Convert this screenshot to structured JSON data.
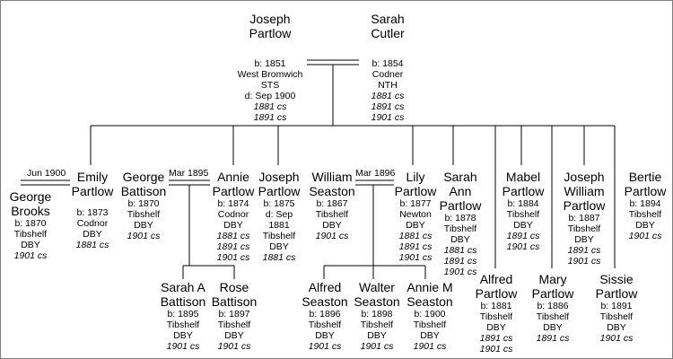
{
  "marriages": {
    "brooks_partlow": "Jun 1900",
    "battison_partlow": "Mar 1895",
    "seaston_partlow": "Mar 1896"
  },
  "people": {
    "joseph_sr": {
      "name1": "Joseph",
      "name2": "Partlow",
      "lines": [
        "b: 1851",
        "West Bromwich",
        "STS",
        "d: Sep 1900"
      ],
      "census": [
        "1881 cs",
        "1891 cs"
      ]
    },
    "sarah_cutler": {
      "name1": "Sarah",
      "name2": "Cutler",
      "lines": [
        "b: 1854",
        "Codner",
        "NTH"
      ],
      "census": [
        "1881 cs",
        "1891 cs",
        "1901 cs"
      ]
    },
    "george_brooks": {
      "name1": "George",
      "name2": "Brooks",
      "lines": [
        "b: 1870",
        "Tibshelf",
        "DBY"
      ],
      "census": [
        "1901 cs"
      ]
    },
    "emily": {
      "name1": "Emily",
      "name2": "Partlow",
      "lines": [
        "b: 1873",
        "Codnor",
        "DBY"
      ],
      "census": [
        "1881 cs"
      ]
    },
    "george_battison": {
      "name1": "George",
      "name2": "Battison",
      "lines": [
        "b: 1870",
        "Tibshelf",
        "DBY"
      ],
      "census": [
        "1901 cs"
      ]
    },
    "annie": {
      "name1": "Annie",
      "name2": "Partlow",
      "lines": [
        "b: 1874",
        "Codnor",
        "DBY"
      ],
      "census": [
        "1881 cs",
        "1891 cs",
        "1901 cs"
      ]
    },
    "joseph_jr": {
      "name1": "Joseph",
      "name2": "Partlow",
      "lines": [
        "b: 1875",
        "d: Sep",
        "1881",
        "Tibshelf",
        "DBY"
      ],
      "census": [
        "1881 cs"
      ]
    },
    "william_seaston": {
      "name1": "William",
      "name2": "Seaston",
      "lines": [
        "b: 1867",
        "Tibshelf",
        "DBY"
      ],
      "census": [
        "1901 cs"
      ]
    },
    "lily": {
      "name1": "Lily",
      "name2": "Partlow",
      "lines": [
        "b: 1877",
        "Newton",
        "DBY"
      ],
      "census": [
        "1881 cs",
        "1891 cs",
        "1901 cs"
      ]
    },
    "sarah_ann": {
      "name1": "Sarah",
      "name2": "Ann",
      "name3": "Partlow",
      "lines": [
        "b: 1878",
        "Tibshelf",
        "DBY"
      ],
      "census": [
        "1881 cs",
        "1891 cs",
        "1901 cs"
      ]
    },
    "alfred": {
      "name1": "Alfred",
      "name2": "Partlow",
      "lines": [
        "b: 1881",
        "Tibshelf",
        "DBY"
      ],
      "census": [
        "1891 cs",
        "1901 cs"
      ]
    },
    "mabel": {
      "name1": "Mabel",
      "name2": "Partlow",
      "lines": [
        "b: 1884",
        "Tibshelf",
        "DBY"
      ],
      "census": [
        "1891 cs",
        "1901 cs"
      ]
    },
    "mary": {
      "name1": "Mary",
      "name2": "Partlow",
      "lines": [
        "b: 1886",
        "Tibshelf",
        "DBY"
      ],
      "census": [
        "1891 cs"
      ]
    },
    "joseph_william": {
      "name1": "Joseph",
      "name2": "William",
      "name3": "Partlow",
      "lines": [
        "b: 1887",
        "Tibshelf",
        "DBY"
      ],
      "census": [
        "1891 cs",
        "1901 cs"
      ]
    },
    "sissie": {
      "name1": "Sissie",
      "name2": "Partlow",
      "lines": [
        "b: 1891",
        "Tibshelf",
        "DBY"
      ],
      "census": [
        "1901 cs"
      ]
    },
    "bertie": {
      "name1": "Bertie",
      "name2": "Partlow",
      "lines": [
        "b: 1894",
        "Tibshelf",
        "DBY"
      ],
      "census": [
        "1901 cs"
      ]
    },
    "sarah_a_battison": {
      "name1": "Sarah A",
      "name2": "Battison",
      "lines": [
        "b: 1895",
        "Tibshelf",
        "DBY"
      ],
      "census": [
        "1901 cs"
      ]
    },
    "rose_battison": {
      "name1": "Rose",
      "name2": "Battison",
      "lines": [
        "b: 1897",
        "Tibshelf",
        "DBY"
      ],
      "census": [
        "1901 cs"
      ]
    },
    "alfred_seaston": {
      "name1": "Alfred",
      "name2": "Seaston",
      "lines": [
        "b: 1896",
        "Tibshelf",
        "DBY"
      ],
      "census": [
        "1901 cs"
      ]
    },
    "walter_seaston": {
      "name1": "Walter",
      "name2": "Seaston",
      "lines": [
        "b: 1898",
        "Tibshelf",
        "DBY"
      ],
      "census": [
        "1901 cs"
      ]
    },
    "annie_m_seaston": {
      "name1": "Annie M",
      "name2": "Seaston",
      "lines": [
        "b: 1900",
        "Tibshelf",
        "DBY"
      ],
      "census": [
        "1901 cs"
      ]
    }
  }
}
